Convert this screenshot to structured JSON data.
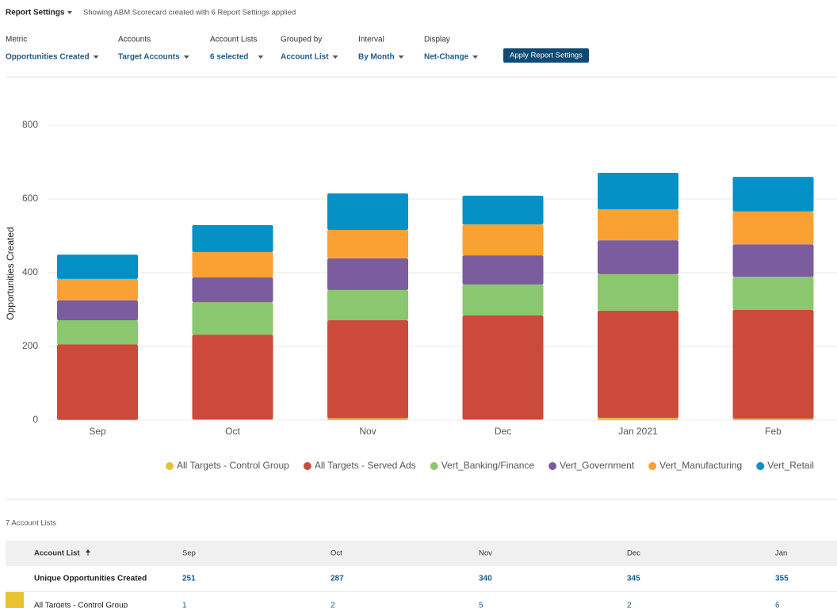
{
  "header": {
    "title": "Report Settings",
    "subtitle": "Showing ABM Scorecard created with 6 Report Settings applied"
  },
  "settings": [
    {
      "label": "Metric",
      "value": "Opportunities Created"
    },
    {
      "label": "Accounts",
      "value": "Target Accounts"
    },
    {
      "label": "Account Lists",
      "value": "6 selected"
    },
    {
      "label": "Grouped by",
      "value": "Account List"
    },
    {
      "label": "Interval",
      "value": "By Month"
    },
    {
      "label": "Display",
      "value": "Net-Change"
    }
  ],
  "button": "Apply Report Settings",
  "chart_data": {
    "type": "stacked_bar",
    "y_label": "Opportunities Created",
    "categories": [
      "Sep",
      "Oct",
      "Nov",
      "Dec",
      "Jan 2021",
      "Feb"
    ],
    "ylim": [
      0,
      800
    ],
    "yticks": [
      0,
      200,
      400,
      600,
      800
    ],
    "grid": true,
    "series": [
      {
        "name": "All Targets - Control Group",
        "color": "#e8c22f",
        "values": [
          1,
          2,
          5,
          2,
          6,
          4
        ]
      },
      {
        "name": "All Targets - Served Ads",
        "color": "#cc4a3b",
        "values": [
          205,
          230,
          266,
          282,
          291,
          295
        ]
      },
      {
        "name": "Vert_Banking/Finance",
        "color": "#8bc76e",
        "values": [
          65,
          88,
          82,
          84,
          99,
          90
        ]
      },
      {
        "name": "Vert_Government",
        "color": "#7b5c9e",
        "values": [
          54,
          67,
          86,
          79,
          92,
          88
        ]
      },
      {
        "name": "Vert_Manufacturing",
        "color": "#f9a233",
        "values": [
          58,
          69,
          77,
          84,
          84,
          89
        ]
      },
      {
        "name": "Vert_Retail",
        "color": "#0591c6",
        "values": [
          66,
          73,
          99,
          78,
          99,
          94
        ]
      }
    ]
  },
  "table": {
    "caption": "7 Account Lists",
    "columns": [
      "Account List",
      "Sep",
      "Oct",
      "Nov",
      "Dec",
      "Jan"
    ],
    "rows": [
      [
        "Unique Opportunities Created",
        251,
        287,
        340,
        345,
        355
      ],
      [
        "All Targets - Control Group",
        1,
        2,
        5,
        2,
        6
      ]
    ]
  }
}
